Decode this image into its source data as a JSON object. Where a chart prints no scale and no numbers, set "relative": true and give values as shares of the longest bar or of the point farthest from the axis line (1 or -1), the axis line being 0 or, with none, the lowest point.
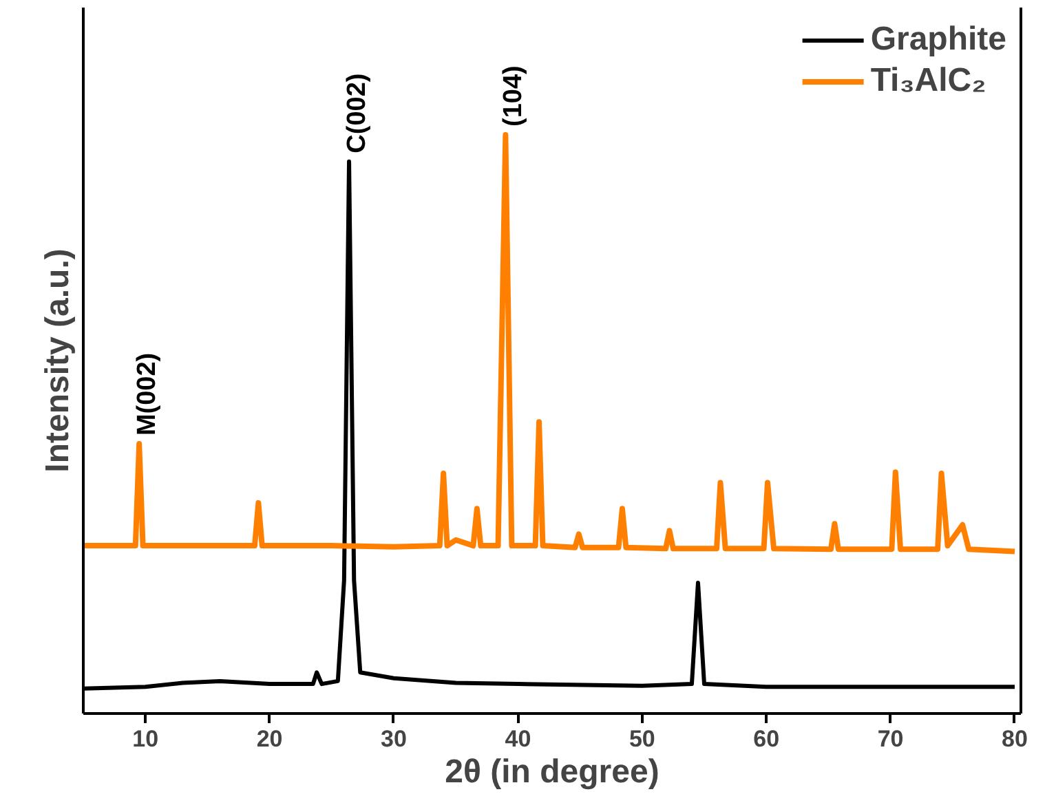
{
  "chart_data": {
    "type": "line",
    "relative": true,
    "xlabel": "2θ (in degree)",
    "ylabel": "Intensity (a.u.)",
    "xlim": [
      5,
      80.5
    ],
    "xticks": [
      10,
      20,
      30,
      40,
      50,
      60,
      70,
      80
    ],
    "legend": "top right",
    "grid": false,
    "tick_labels": "x",
    "marker": "none",
    "line_style": "solid",
    "series": [
      {
        "name": "Graphite",
        "color": "#000000",
        "x": [
          5,
          10,
          13,
          16,
          20,
          23.5,
          23.8,
          24.2,
          25.5,
          26.0,
          26.4,
          26.8,
          27.3,
          30,
          35,
          40,
          50,
          54.0,
          54.5,
          55.0,
          60,
          70,
          80
        ],
        "values": [
          0.043,
          0.046,
          0.053,
          0.056,
          0.051,
          0.051,
          0.071,
          0.051,
          0.056,
          0.23,
          0.954,
          0.23,
          0.071,
          0.061,
          0.053,
          0.051,
          0.048,
          0.051,
          0.226,
          0.051,
          0.046,
          0.046,
          0.046
        ]
      },
      {
        "name": "Ti₃AlC₂",
        "color": "#ff8000",
        "x": [
          5,
          9.2,
          9.5,
          9.8,
          15,
          18.8,
          19.1,
          19.4,
          25,
          30,
          33.7,
          34.0,
          34.3,
          35.0,
          36.4,
          36.7,
          37.0,
          38.4,
          39.0,
          39.5,
          41.4,
          41.7,
          42.0,
          44.6,
          44.9,
          45.2,
          48.1,
          48.4,
          48.7,
          51.9,
          52.2,
          52.5,
          56.0,
          56.3,
          56.7,
          59.8,
          60.1,
          60.6,
          65.2,
          65.5,
          65.8,
          70.1,
          70.4,
          70.8,
          73.8,
          74.1,
          74.6,
          75.8,
          76.3,
          80
        ],
        "values": [
          0.29,
          0.29,
          0.466,
          0.29,
          0.29,
          0.29,
          0.364,
          0.29,
          0.29,
          0.288,
          0.29,
          0.415,
          0.29,
          0.3,
          0.29,
          0.354,
          0.29,
          0.29,
          1.0,
          0.29,
          0.29,
          0.504,
          0.29,
          0.287,
          0.31,
          0.287,
          0.287,
          0.354,
          0.287,
          0.285,
          0.316,
          0.285,
          0.285,
          0.399,
          0.285,
          0.285,
          0.399,
          0.285,
          0.284,
          0.328,
          0.284,
          0.284,
          0.417,
          0.284,
          0.284,
          0.415,
          0.29,
          0.326,
          0.284,
          0.28
        ]
      }
    ],
    "annotations": [
      {
        "text": "M(002)",
        "x": 9.5,
        "y": 0.466
      },
      {
        "text": "C(002)",
        "x": 26.4,
        "y": 0.954
      },
      {
        "text": "(104)",
        "x": 39.0,
        "y": 1.0
      }
    ]
  }
}
